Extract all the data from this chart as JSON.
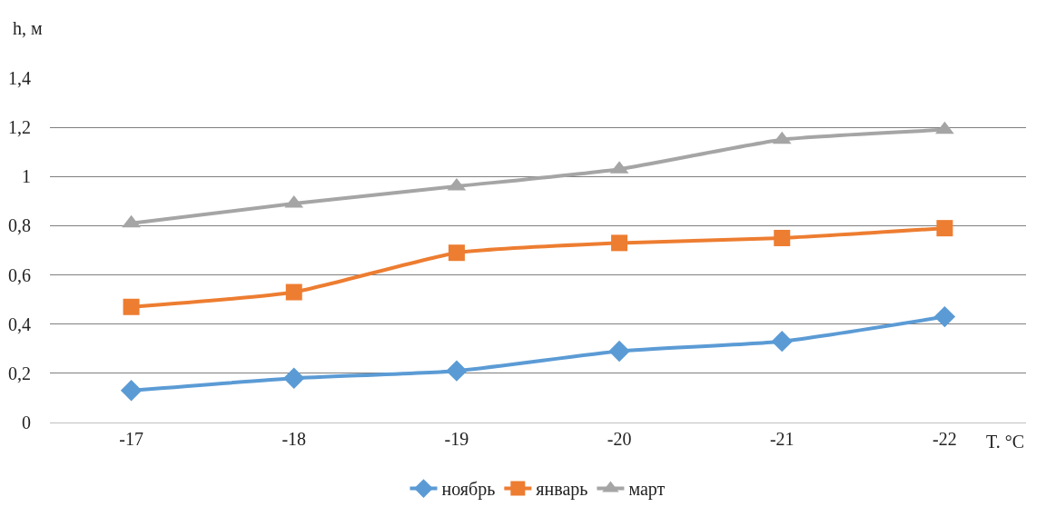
{
  "chart_data": {
    "type": "line",
    "xlabel": "T. °C",
    "ylabel": "h, м",
    "categories": [
      "-17",
      "-18",
      "-19",
      "-20",
      "-21",
      "-22"
    ],
    "series": [
      {
        "name": "ноябрь",
        "color": "#5b9bd5",
        "marker": "diamond",
        "values": [
          0.13,
          0.18,
          0.21,
          0.29,
          0.33,
          0.43
        ]
      },
      {
        "name": "январь",
        "color": "#ed7d31",
        "marker": "square",
        "values": [
          0.47,
          0.53,
          0.69,
          0.73,
          0.75,
          0.79
        ]
      },
      {
        "name": "март",
        "color": "#a5a5a5",
        "marker": "triangle",
        "values": [
          0.81,
          0.89,
          0.96,
          1.03,
          1.15,
          1.19
        ]
      }
    ],
    "ylim": [
      0,
      1.4
    ],
    "yticks": [
      0,
      {
        "value": 0.2,
        "label": "0,2"
      },
      {
        "value": 0.4,
        "label": "0,4"
      },
      {
        "value": 0.6,
        "label": "0,6"
      },
      {
        "value": 0.8,
        "label": "0,8"
      },
      1,
      {
        "value": 1.2,
        "label": "1,2"
      },
      {
        "value": 1.4,
        "label": "1,4"
      }
    ],
    "grid": "y",
    "legend": "bottom",
    "line_style": "solid"
  }
}
